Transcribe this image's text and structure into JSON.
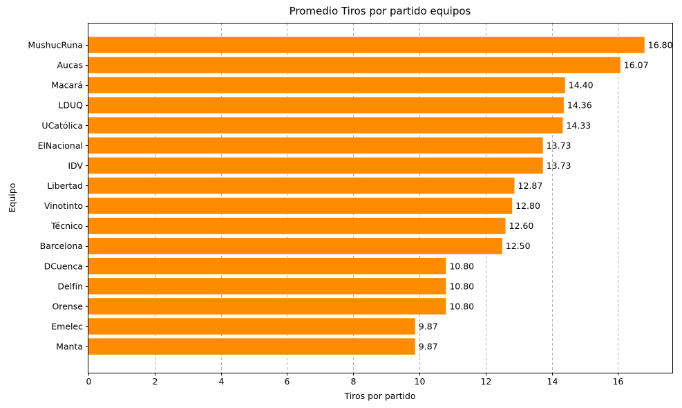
{
  "chart_data": {
    "type": "bar",
    "orientation": "horizontal",
    "title": "Promedio Tiros por partido equipos",
    "xlabel": "Tiros por partido",
    "ylabel": "Equipo",
    "categories": [
      "MushucRuna",
      "Aucas",
      "Macará",
      "LDUQ",
      "UCatólica",
      "ElNacional",
      "IDV",
      "Libertad",
      "Vinotinto",
      "Técnico",
      "Barcelona",
      "DCuenca",
      "Delfín",
      "Orense",
      "Emelec",
      "Manta"
    ],
    "values": [
      16.8,
      16.07,
      14.4,
      14.36,
      14.33,
      13.73,
      13.73,
      12.87,
      12.8,
      12.6,
      12.5,
      10.8,
      10.8,
      10.8,
      9.87,
      9.87
    ],
    "data_labels": [
      "16.80",
      "16.07",
      "14.40",
      "14.36",
      "14.33",
      "13.73",
      "13.73",
      "12.87",
      "12.80",
      "12.60",
      "12.50",
      "10.80",
      "10.80",
      "10.80",
      "9.87",
      "9.87"
    ],
    "xlim": [
      0,
      17.64
    ],
    "xticks": [
      "0",
      "2",
      "4",
      "6",
      "8",
      "10",
      "12",
      "14",
      "16"
    ],
    "grid": "x-dashed",
    "bar_color": "#ff8c00"
  }
}
